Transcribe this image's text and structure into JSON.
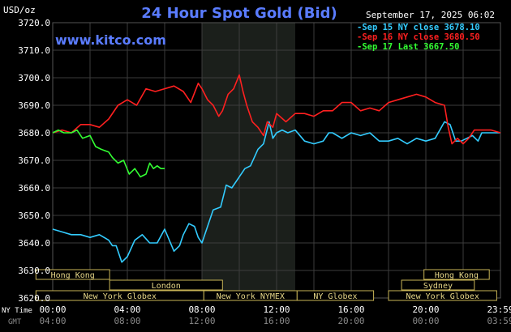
{
  "header": {
    "unit": "USD/oz",
    "title": "24 Hour Spot Gold (Bid)",
    "site": "www.kitco.com",
    "timestamp": "September 17, 2025 06:02"
  },
  "legend": [
    {
      "label": "Sep 15 NY close 3678.10",
      "color": "#33ccff"
    },
    {
      "label": "Sep 16 NY close 3680.50",
      "color": "#ff2020"
    },
    {
      "label": "Sep 17 Last 3667.50",
      "color": "#33ff33"
    }
  ],
  "axis_row_labels": {
    "ny_time": "NY Time",
    "gmt": "GMT"
  },
  "markets": [
    {
      "label": "Hong Kong",
      "x0": -0.9,
      "x1": 3.05
    },
    {
      "label": "London",
      "x0": 3.05,
      "x1": 9.1
    },
    {
      "label": "New York Globex",
      "x0": -0.9,
      "x1": 8.1
    },
    {
      "label": "New York NYMEX",
      "x0": 8.1,
      "x1": 13.1
    },
    {
      "label": "NY Globex",
      "x0": 13.1,
      "x1": 17.2
    },
    {
      "label": "Hong Kong",
      "x0": 19.9,
      "x1": 23.4
    },
    {
      "label": "Sydney",
      "x0": 18.7,
      "x1": 22.6
    },
    {
      "label": "New York Globex",
      "x0": 18.0,
      "x1": 23.8
    }
  ],
  "chart_data": {
    "type": "line",
    "ylim": [
      3620,
      3720
    ],
    "xlim": [
      0,
      24
    ],
    "y_ticks": [
      "3620.0",
      "3630.0",
      "3640.0",
      "3650.0",
      "3660.0",
      "3670.0",
      "3680.0",
      "3690.0",
      "3700.0",
      "3710.0",
      "3720.0"
    ],
    "x_ticks_ny": [
      {
        "x": 0,
        "label": "00:00"
      },
      {
        "x": 4,
        "label": "04:00"
      },
      {
        "x": 8,
        "label": "08:00"
      },
      {
        "x": 12,
        "label": "12:00"
      },
      {
        "x": 16,
        "label": "16:00"
      },
      {
        "x": 20,
        "label": "20:00"
      },
      {
        "x": 24,
        "label": "23:59"
      }
    ],
    "x_ticks_gmt": [
      {
        "x": 0,
        "label": "04:00"
      },
      {
        "x": 4,
        "label": "08:00"
      },
      {
        "x": 8,
        "label": "12:00"
      },
      {
        "x": 12,
        "label": "16:00"
      },
      {
        "x": 16,
        "label": "20:00"
      },
      {
        "x": 20,
        "label": "00:00"
      },
      {
        "x": 24,
        "label": "03:59"
      }
    ],
    "shaded_region": [
      8,
      13
    ],
    "grid": true,
    "series": [
      {
        "name": "Sep 15",
        "color": "#33ccff",
        "x": [
          0,
          0.5,
          1,
          1.5,
          2,
          2.5,
          3,
          3.2,
          3.4,
          3.7,
          4,
          4.4,
          4.8,
          5.2,
          5.6,
          6,
          6.5,
          6.8,
          7,
          7.3,
          7.6,
          7.8,
          8,
          8.3,
          8.6,
          9,
          9.3,
          9.6,
          10,
          10.3,
          10.6,
          11,
          11.3,
          11.6,
          11.8,
          12,
          12.3,
          12.6,
          13,
          13.5,
          14,
          14.5,
          14.8,
          15,
          15.5,
          16,
          16.5,
          17,
          17.5,
          18,
          18.5,
          19,
          19.5,
          20,
          20.5,
          21,
          21.3,
          21.6,
          21.9,
          22.2,
          22.5,
          22.8,
          23,
          23.5,
          24
        ],
        "values": [
          3645,
          3644,
          3643,
          3643,
          3642,
          3643,
          3641,
          3639,
          3639,
          3633,
          3635,
          3641,
          3643,
          3640,
          3640,
          3645,
          3637,
          3639,
          3643,
          3647,
          3646,
          3642,
          3640,
          3646,
          3652,
          3653,
          3661,
          3660,
          3664,
          3667,
          3668,
          3674,
          3676,
          3684,
          3678,
          3680,
          3681,
          3680,
          3681,
          3677,
          3676,
          3677,
          3680,
          3680,
          3678,
          3680,
          3679,
          3680,
          3677,
          3677,
          3678,
          3676,
          3678,
          3677,
          3678,
          3684,
          3683,
          3677,
          3677,
          3678,
          3679,
          3677,
          3680,
          3680,
          3680
        ]
      },
      {
        "name": "Sep 16",
        "color": "#ff2020",
        "x": [
          0,
          0.5,
          1,
          1.5,
          2,
          2.5,
          3,
          3.5,
          4,
          4.5,
          5,
          5.5,
          6,
          6.5,
          7,
          7.4,
          7.8,
          8,
          8.3,
          8.6,
          8.9,
          9.1,
          9.4,
          9.7,
          10,
          10.2,
          10.4,
          10.7,
          11,
          11.3,
          11.5,
          11.8,
          12,
          12.5,
          13,
          13.5,
          14,
          14.5,
          15,
          15.5,
          16,
          16.5,
          17,
          17.5,
          18,
          18.5,
          19,
          19.5,
          20,
          20.5,
          21,
          21.2,
          21.4,
          21.7,
          22,
          22.3,
          22.6,
          23,
          23.5,
          24
        ],
        "values": [
          3680,
          3681,
          3680,
          3683,
          3683,
          3682,
          3685,
          3690,
          3692,
          3690,
          3696,
          3695,
          3696,
          3697,
          3695,
          3691,
          3698,
          3696,
          3692,
          3690,
          3686,
          3688,
          3694,
          3696,
          3701,
          3695,
          3690,
          3684,
          3682,
          3679,
          3684,
          3682,
          3687,
          3684,
          3687,
          3687,
          3686,
          3688,
          3688,
          3691,
          3691,
          3688,
          3689,
          3688,
          3691,
          3692,
          3693,
          3694,
          3693,
          3691,
          3690,
          3682,
          3676,
          3678,
          3676,
          3678,
          3681,
          3681,
          3681,
          3680
        ]
      },
      {
        "name": "Sep 17",
        "color": "#33ff33",
        "x": [
          0,
          0.3,
          0.6,
          1,
          1.3,
          1.6,
          2,
          2.3,
          2.6,
          3,
          3.2,
          3.5,
          3.8,
          4.1,
          4.4,
          4.7,
          5,
          5.2,
          5.4,
          5.6,
          5.8,
          6
        ],
        "values": [
          3680,
          3681,
          3680,
          3680,
          3681,
          3678,
          3679,
          3675,
          3674,
          3673,
          3671,
          3669,
          3670,
          3665,
          3667,
          3664,
          3665,
          3669,
          3667,
          3668,
          3667,
          3667
        ]
      }
    ]
  }
}
